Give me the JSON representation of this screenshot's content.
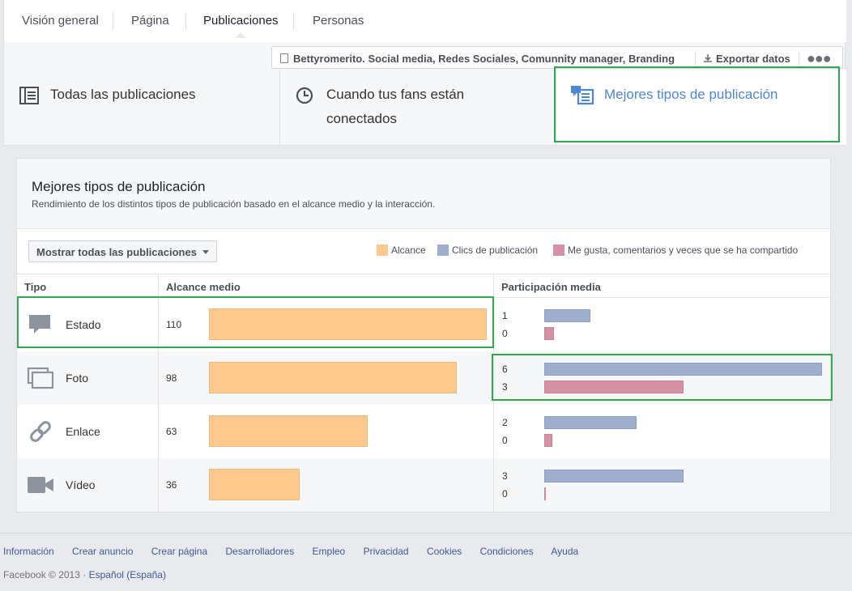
{
  "nav": {
    "tabs": [
      {
        "label": "Visión general"
      },
      {
        "label": "Página"
      },
      {
        "label": "Publicaciones",
        "active": true
      },
      {
        "label": "Personas"
      }
    ]
  },
  "page_bar": {
    "page_name": "Bettyromerito. Social media, Redes Sociales, Comunnity manager, Branding",
    "export_label": "Exportar datos",
    "more_label": "●●●"
  },
  "segments": [
    {
      "label": "Todas las publicaciones",
      "icon": "list-icon"
    },
    {
      "label": "Cuando tus fans están conectados",
      "icon": "clock-icon"
    },
    {
      "label": "Mejores tipos de publicación",
      "icon": "post-types-icon",
      "active": true
    }
  ],
  "card": {
    "title": "Mejores tipos de publicación",
    "subtitle": "Rendimiento de los distintos tipos de publicación basado en el alcance medio y la interacción.",
    "filter_label": "Mostrar todas las publicaciones",
    "legend": [
      {
        "label": "Alcance",
        "color": "#fec98c"
      },
      {
        "label": "Clics de publicación",
        "color": "#9eaecc"
      },
      {
        "label": "Me gusta, comentarios y veces que se ha compartido",
        "color": "#d592a5"
      }
    ],
    "columns": {
      "type": "Tipo",
      "reach": "Alcance medio",
      "engagement": "Participación media"
    },
    "rows": [
      {
        "type": "Estado",
        "icon": "status-icon",
        "reach": 110,
        "clicks": 1,
        "likes": 0
      },
      {
        "type": "Foto",
        "icon": "photo-icon",
        "reach": 98,
        "clicks": 6,
        "likes": 3
      },
      {
        "type": "Enlace",
        "icon": "link-icon",
        "reach": 63,
        "clicks": 2,
        "likes": 0
      },
      {
        "type": "Vídeo",
        "icon": "video-icon",
        "reach": 36,
        "clicks": 3,
        "likes": 0
      }
    ],
    "reach_max": 110,
    "engagement_max": 6
  },
  "footer": {
    "links": [
      "Información",
      "Crear anuncio",
      "Crear página",
      "Desarrolladores",
      "Empleo",
      "Privacidad",
      "Cookies",
      "Condiciones",
      "Ayuda"
    ],
    "copyright": "Facebook © 2013 ·",
    "language": "Español (España)"
  },
  "colors": {
    "highlight": "#2fa84f",
    "link": "#3b5998",
    "active_segment": "#4e86d6"
  }
}
